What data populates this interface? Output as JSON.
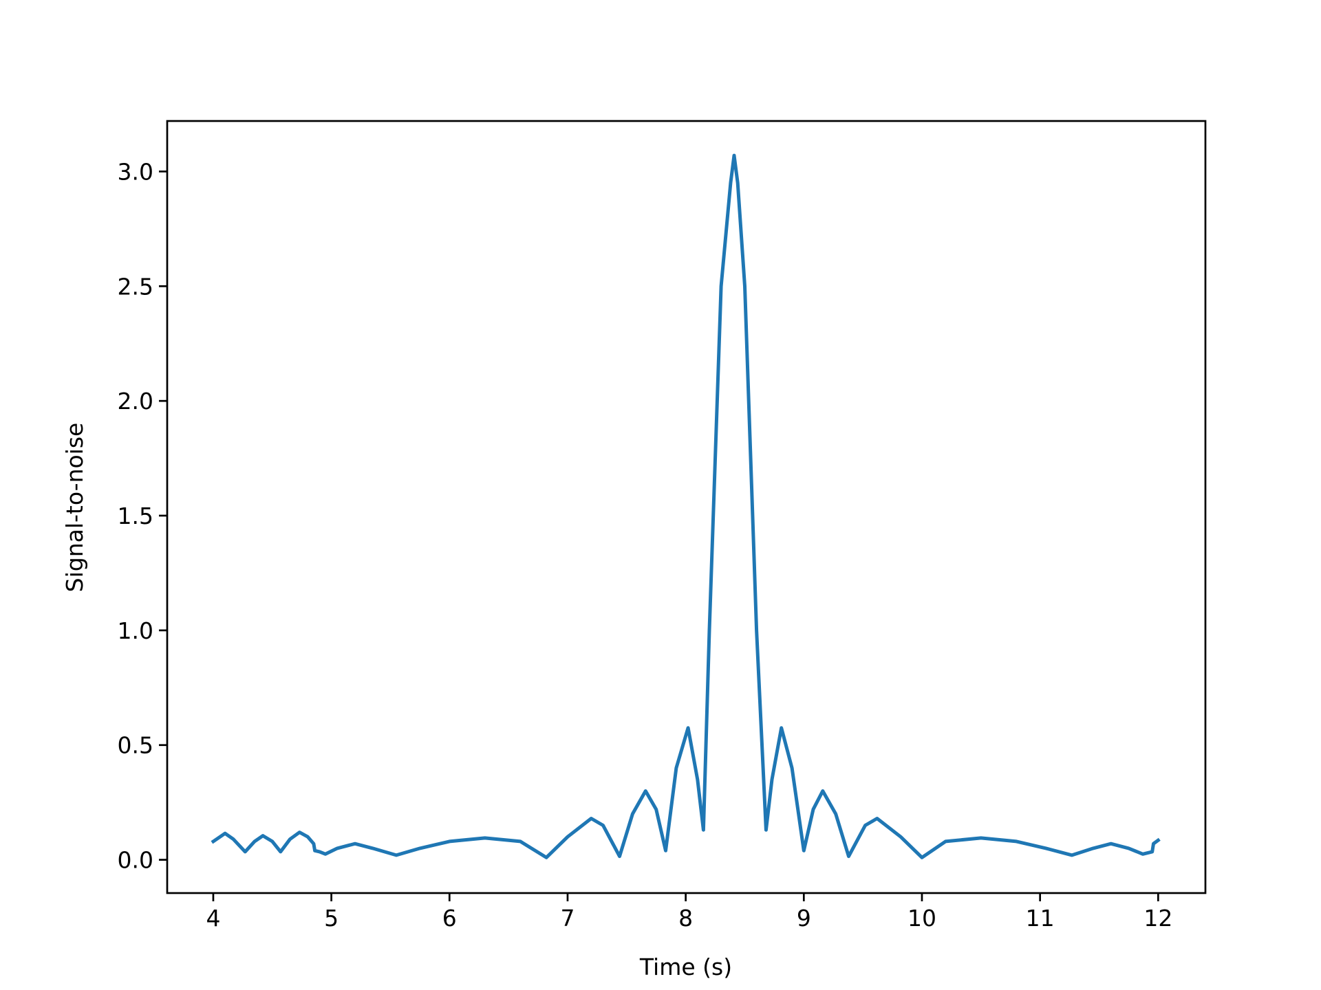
{
  "chart_data": {
    "type": "line",
    "xlabel": "Time (s)",
    "ylabel": "Signal-to-noise",
    "x": [
      4.0,
      4.1,
      4.17,
      4.27,
      4.35,
      4.42,
      4.5,
      4.57,
      4.65,
      4.73,
      4.8,
      4.85,
      4.86,
      4.9,
      4.95,
      5.05,
      5.2,
      5.35,
      5.55,
      5.75,
      6.0,
      6.3,
      6.6,
      6.82,
      7.0,
      7.2,
      7.3,
      7.44,
      7.55,
      7.66,
      7.75,
      7.83,
      7.92,
      8.02,
      8.1,
      8.15,
      8.2,
      8.3,
      8.38,
      8.41,
      8.44,
      8.5,
      8.6,
      8.68,
      8.73,
      8.81,
      8.9,
      9.0,
      9.08,
      9.16,
      9.27,
      9.38,
      9.52,
      9.62,
      9.82,
      10.0,
      10.2,
      10.5,
      10.8,
      11.05,
      11.27,
      11.45,
      11.6,
      11.75,
      11.87,
      11.95,
      11.96,
      12.0
    ],
    "series": [
      {
        "color": "#1f77b4",
        "values": [
          0.08,
          0.115,
          0.09,
          0.035,
          0.08,
          0.105,
          0.08,
          0.035,
          0.09,
          0.12,
          0.1,
          0.07,
          0.04,
          0.035,
          0.025,
          0.05,
          0.07,
          0.05,
          0.02,
          0.05,
          0.08,
          0.095,
          0.08,
          0.01,
          0.1,
          0.18,
          0.15,
          0.015,
          0.2,
          0.3,
          0.22,
          0.04,
          0.4,
          0.575,
          0.35,
          0.13,
          1.0,
          2.5,
          2.95,
          3.07,
          2.95,
          2.5,
          1.0,
          0.13,
          0.35,
          0.575,
          0.4,
          0.04,
          0.22,
          0.3,
          0.2,
          0.015,
          0.15,
          0.18,
          0.1,
          0.01,
          0.08,
          0.095,
          0.08,
          0.05,
          0.02,
          0.05,
          0.07,
          0.05,
          0.025,
          0.035,
          0.07,
          0.085
        ]
      }
    ],
    "xlim": [
      3.61,
      12.4
    ],
    "ylim": [
      -0.145,
      3.22
    ],
    "xticks": [
      4,
      5,
      6,
      7,
      8,
      9,
      10,
      11,
      12
    ],
    "yticks": [
      {
        "value": 0,
        "label": "0.0"
      },
      {
        "value": 0.5,
        "label": "0.5"
      },
      {
        "value": 1,
        "label": "1.0"
      },
      {
        "value": 1.5,
        "label": "1.5"
      },
      {
        "value": 2,
        "label": "2.0"
      },
      {
        "value": 2.5,
        "label": "2.5"
      },
      {
        "value": 3,
        "label": "3.0"
      }
    ]
  }
}
